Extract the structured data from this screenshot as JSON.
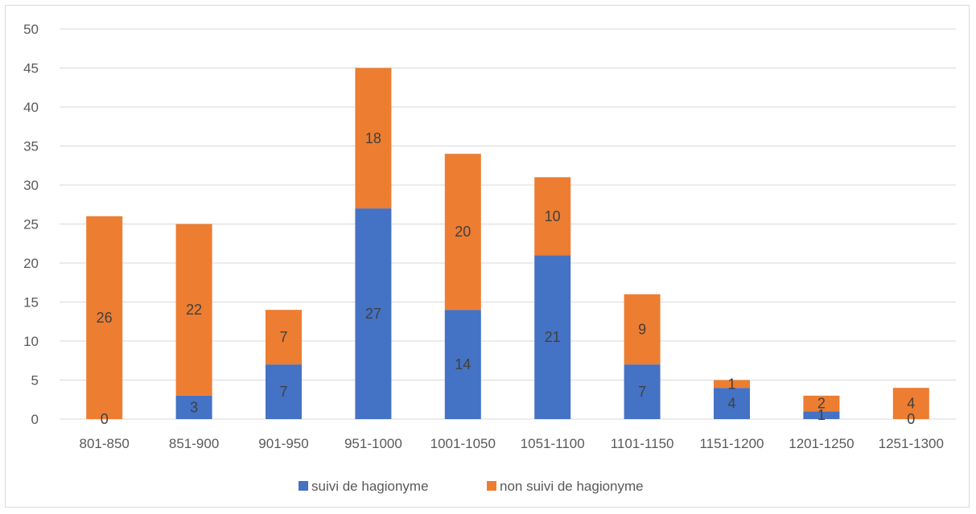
{
  "chart_data": {
    "type": "bar",
    "stacked": true,
    "categories": [
      "801-850",
      "851-900",
      "901-950",
      "951-1000",
      "1001-1050",
      "1051-1100",
      "1101-1150",
      "1151-1200",
      "1201-1250",
      "1251-1300"
    ],
    "series": [
      {
        "name": "suivi de hagionyme",
        "color": "#4472c4",
        "values": [
          0,
          3,
          7,
          27,
          14,
          21,
          7,
          4,
          1,
          0
        ]
      },
      {
        "name": "non suivi de hagionyme",
        "color": "#ed7d31",
        "values": [
          26,
          22,
          7,
          18,
          20,
          10,
          9,
          1,
          2,
          4
        ]
      }
    ],
    "ylim": [
      0,
      50
    ],
    "yticks": [
      0,
      5,
      10,
      15,
      20,
      25,
      30,
      35,
      40,
      45,
      50
    ],
    "grid": true,
    "legend_position": "bottom"
  }
}
